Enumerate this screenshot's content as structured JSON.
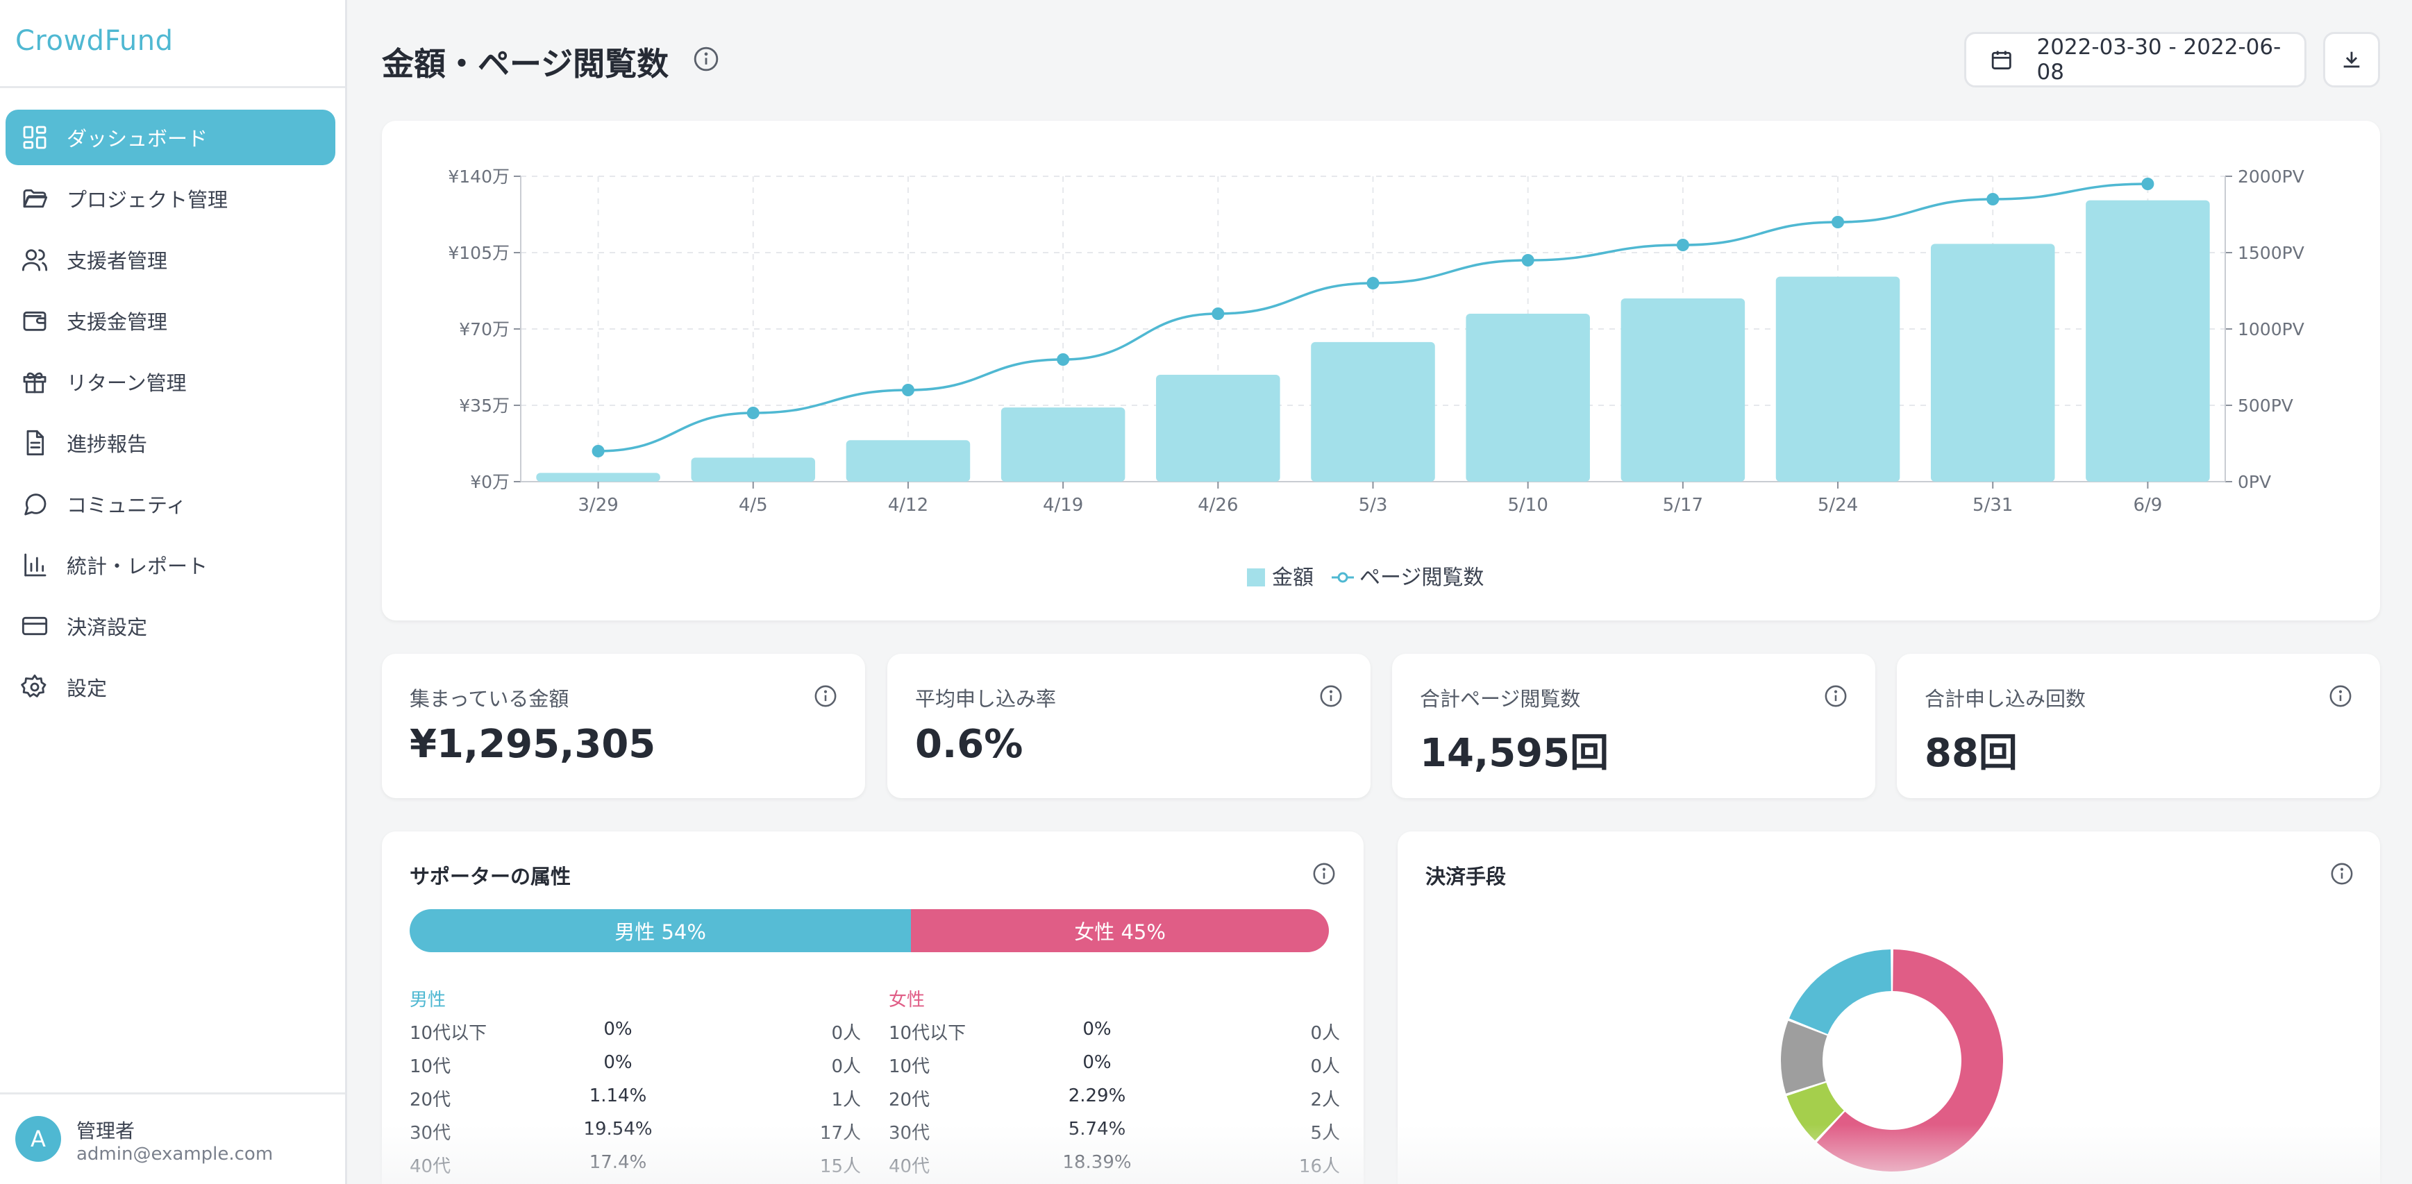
{
  "app": {
    "brand": "CrowdFund"
  },
  "sidebar": {
    "items": [
      {
        "label": "ダッシュボード",
        "icon": "dashboard-icon",
        "active": true
      },
      {
        "label": "プロジェクト管理",
        "icon": "folder-icon",
        "active": false
      },
      {
        "label": "支援者管理",
        "icon": "users-icon",
        "active": false
      },
      {
        "label": "支援金管理",
        "icon": "wallet-icon",
        "active": false
      },
      {
        "label": "リターン管理",
        "icon": "gift-icon",
        "active": false
      },
      {
        "label": "進捗報告",
        "icon": "document-icon",
        "active": false
      },
      {
        "label": "コミュニティ",
        "icon": "chat-icon",
        "active": false
      },
      {
        "label": "統計・レポート",
        "icon": "bar-chart-icon",
        "active": false
      },
      {
        "label": "決済設定",
        "icon": "credit-card-icon",
        "active": false
      },
      {
        "label": "設定",
        "icon": "gear-icon",
        "active": false
      }
    ],
    "user": {
      "initial": "A",
      "name": "管理者",
      "email": "admin@example.com"
    }
  },
  "header": {
    "title": "金額・ページ閲覧数",
    "date_range": "2022-03-30 - 2022-06-08"
  },
  "colors": {
    "accent": "#56bcd5",
    "bar": "#a3e0ea",
    "female": "#e05d86",
    "line": "#4fb8d2"
  },
  "chart_data": {
    "type": "bar",
    "categories": [
      "3/29",
      "4/5",
      "4/12",
      "4/19",
      "4/26",
      "5/3",
      "5/10",
      "5/17",
      "5/24",
      "5/31",
      "6/9"
    ],
    "series": [
      {
        "name": "金額",
        "type": "bar",
        "axis": "left",
        "unit": "万円",
        "values": [
          4,
          11,
          19,
          34,
          49,
          64,
          77,
          84,
          94,
          109,
          129
        ]
      },
      {
        "name": "ページ閲覧数",
        "type": "line",
        "axis": "right",
        "unit": "PV",
        "values": [
          200,
          450,
          600,
          800,
          1100,
          1300,
          1450,
          1550,
          1700,
          1850,
          1950
        ]
      }
    ],
    "y_left": {
      "ticks": [
        "¥0万",
        "¥35万",
        "¥70万",
        "¥105万",
        "¥140万"
      ],
      "range": [
        0,
        140
      ]
    },
    "y_right": {
      "ticks": [
        "0PV",
        "500PV",
        "1000PV",
        "1500PV",
        "2000PV"
      ],
      "range": [
        0,
        2000
      ]
    },
    "grid": true,
    "legend": "bottom-center",
    "legend_labels": [
      "金額",
      "ページ閲覧数"
    ]
  },
  "stats": [
    {
      "label": "集まっている金額",
      "value": "¥1,295,305"
    },
    {
      "label": "平均申し込み率",
      "value": "0.6%"
    },
    {
      "label": "合計ページ閲覧数",
      "value": "14,595回"
    },
    {
      "label": "合計申し込み回数",
      "value": "88回"
    }
  ],
  "supporters": {
    "title": "サポーターの属性",
    "male_bar": "男性 54%",
    "female_bar": "女性 45%",
    "male_share": 54,
    "female_share": 45,
    "male": {
      "heading": "男性",
      "rows": [
        {
          "age": "10代以下",
          "pct": "0%",
          "count": "0人"
        },
        {
          "age": "10代",
          "pct": "0%",
          "count": "0人"
        },
        {
          "age": "20代",
          "pct": "1.14%",
          "count": "1人"
        },
        {
          "age": "30代",
          "pct": "19.54%",
          "count": "17人"
        },
        {
          "age": "40代",
          "pct": "17.4%",
          "count": "15人"
        }
      ]
    },
    "female": {
      "heading": "女性",
      "rows": [
        {
          "age": "10代以下",
          "pct": "0%",
          "count": "0人"
        },
        {
          "age": "10代",
          "pct": "0%",
          "count": "0人"
        },
        {
          "age": "20代",
          "pct": "2.29%",
          "count": "2人"
        },
        {
          "age": "30代",
          "pct": "5.74%",
          "count": "5人"
        },
        {
          "age": "40代",
          "pct": "18.39%",
          "count": "16人"
        }
      ]
    }
  },
  "payment": {
    "title": "決済手段",
    "donut": {
      "slices": [
        {
          "value": 62,
          "color": "#e05d86"
        },
        {
          "value": 8,
          "color": "#a5cf4c"
        },
        {
          "value": 11,
          "color": "#9e9e9e"
        },
        {
          "value": 19,
          "color": "#56bcd5"
        }
      ]
    }
  }
}
